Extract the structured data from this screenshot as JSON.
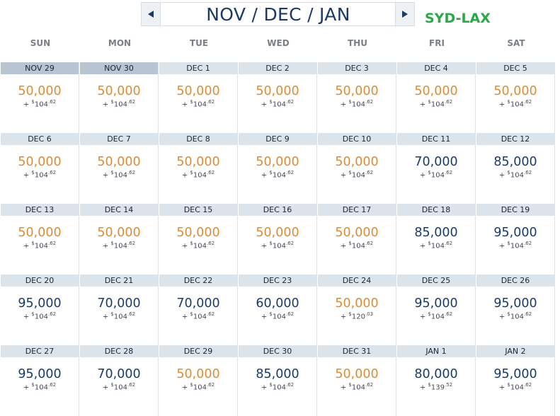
{
  "header": {
    "title": "NOV / DEC / JAN",
    "route": "SYD-LAX",
    "prev_icon": "chevron-left-icon",
    "next_icon": "chevron-right-icon"
  },
  "weekdays": [
    "SUN",
    "MON",
    "TUE",
    "WED",
    "THU",
    "FRI",
    "SAT"
  ],
  "colors": {
    "low_price": "#dd8a33",
    "high_price": "#183a6b",
    "date_bar": "#dbe3eb",
    "past_date_bar": "#b7c4d2",
    "route": "#2ba84a",
    "title": "#1a3a66"
  },
  "weeks": [
    [
      {
        "date": "NOV 29",
        "miles": "50,000",
        "tax_dollars": "104",
        "tax_cents": "62",
        "tier": "low",
        "past": true
      },
      {
        "date": "NOV 30",
        "miles": "50,000",
        "tax_dollars": "104",
        "tax_cents": "62",
        "tier": "low",
        "past": true
      },
      {
        "date": "DEC 1",
        "miles": "50,000",
        "tax_dollars": "104",
        "tax_cents": "62",
        "tier": "low"
      },
      {
        "date": "DEC 2",
        "miles": "50,000",
        "tax_dollars": "104",
        "tax_cents": "62",
        "tier": "low"
      },
      {
        "date": "DEC 3",
        "miles": "50,000",
        "tax_dollars": "104",
        "tax_cents": "62",
        "tier": "low"
      },
      {
        "date": "DEC 4",
        "miles": "50,000",
        "tax_dollars": "104",
        "tax_cents": "62",
        "tier": "low"
      },
      {
        "date": "DEC 5",
        "miles": "50,000",
        "tax_dollars": "104",
        "tax_cents": "62",
        "tier": "low"
      }
    ],
    [
      {
        "date": "DEC 6",
        "miles": "50,000",
        "tax_dollars": "104",
        "tax_cents": "62",
        "tier": "low"
      },
      {
        "date": "DEC 7",
        "miles": "50,000",
        "tax_dollars": "104",
        "tax_cents": "62",
        "tier": "low"
      },
      {
        "date": "DEC 8",
        "miles": "50,000",
        "tax_dollars": "104",
        "tax_cents": "62",
        "tier": "low"
      },
      {
        "date": "DEC 9",
        "miles": "50,000",
        "tax_dollars": "104",
        "tax_cents": "62",
        "tier": "low"
      },
      {
        "date": "DEC 10",
        "miles": "50,000",
        "tax_dollars": "104",
        "tax_cents": "62",
        "tier": "low"
      },
      {
        "date": "DEC 11",
        "miles": "70,000",
        "tax_dollars": "104",
        "tax_cents": "62",
        "tier": "high"
      },
      {
        "date": "DEC 12",
        "miles": "85,000",
        "tax_dollars": "104",
        "tax_cents": "62",
        "tier": "high"
      }
    ],
    [
      {
        "date": "DEC 13",
        "miles": "50,000",
        "tax_dollars": "104",
        "tax_cents": "62",
        "tier": "low"
      },
      {
        "date": "DEC 14",
        "miles": "50,000",
        "tax_dollars": "104",
        "tax_cents": "62",
        "tier": "low"
      },
      {
        "date": "DEC 15",
        "miles": "50,000",
        "tax_dollars": "104",
        "tax_cents": "62",
        "tier": "low"
      },
      {
        "date": "DEC 16",
        "miles": "50,000",
        "tax_dollars": "104",
        "tax_cents": "62",
        "tier": "low"
      },
      {
        "date": "DEC 17",
        "miles": "50,000",
        "tax_dollars": "104",
        "tax_cents": "62",
        "tier": "low"
      },
      {
        "date": "DEC 18",
        "miles": "85,000",
        "tax_dollars": "104",
        "tax_cents": "62",
        "tier": "high"
      },
      {
        "date": "DEC 19",
        "miles": "95,000",
        "tax_dollars": "104",
        "tax_cents": "62",
        "tier": "high"
      }
    ],
    [
      {
        "date": "DEC 20",
        "miles": "95,000",
        "tax_dollars": "104",
        "tax_cents": "62",
        "tier": "high"
      },
      {
        "date": "DEC 21",
        "miles": "70,000",
        "tax_dollars": "104",
        "tax_cents": "62",
        "tier": "high"
      },
      {
        "date": "DEC 22",
        "miles": "70,000",
        "tax_dollars": "104",
        "tax_cents": "62",
        "tier": "high"
      },
      {
        "date": "DEC 23",
        "miles": "60,000",
        "tax_dollars": "104",
        "tax_cents": "62",
        "tier": "high"
      },
      {
        "date": "DEC 24",
        "miles": "50,000",
        "tax_dollars": "120",
        "tax_cents": "03",
        "tier": "low"
      },
      {
        "date": "DEC 25",
        "miles": "95,000",
        "tax_dollars": "104",
        "tax_cents": "62",
        "tier": "high"
      },
      {
        "date": "DEC 26",
        "miles": "95,000",
        "tax_dollars": "104",
        "tax_cents": "62",
        "tier": "high"
      }
    ],
    [
      {
        "date": "DEC 27",
        "miles": "95,000",
        "tax_dollars": "104",
        "tax_cents": "62",
        "tier": "high"
      },
      {
        "date": "DEC 28",
        "miles": "70,000",
        "tax_dollars": "104",
        "tax_cents": "62",
        "tier": "high"
      },
      {
        "date": "DEC 29",
        "miles": "50,000",
        "tax_dollars": "104",
        "tax_cents": "62",
        "tier": "low"
      },
      {
        "date": "DEC 30",
        "miles": "85,000",
        "tax_dollars": "104",
        "tax_cents": "62",
        "tier": "high"
      },
      {
        "date": "DEC 31",
        "miles": "50,000",
        "tax_dollars": "104",
        "tax_cents": "62",
        "tier": "low"
      },
      {
        "date": "JAN 1",
        "miles": "80,000",
        "tax_dollars": "139",
        "tax_cents": "52",
        "tier": "high"
      },
      {
        "date": "JAN 2",
        "miles": "95,000",
        "tax_dollars": "104",
        "tax_cents": "62",
        "tier": "high"
      }
    ]
  ]
}
